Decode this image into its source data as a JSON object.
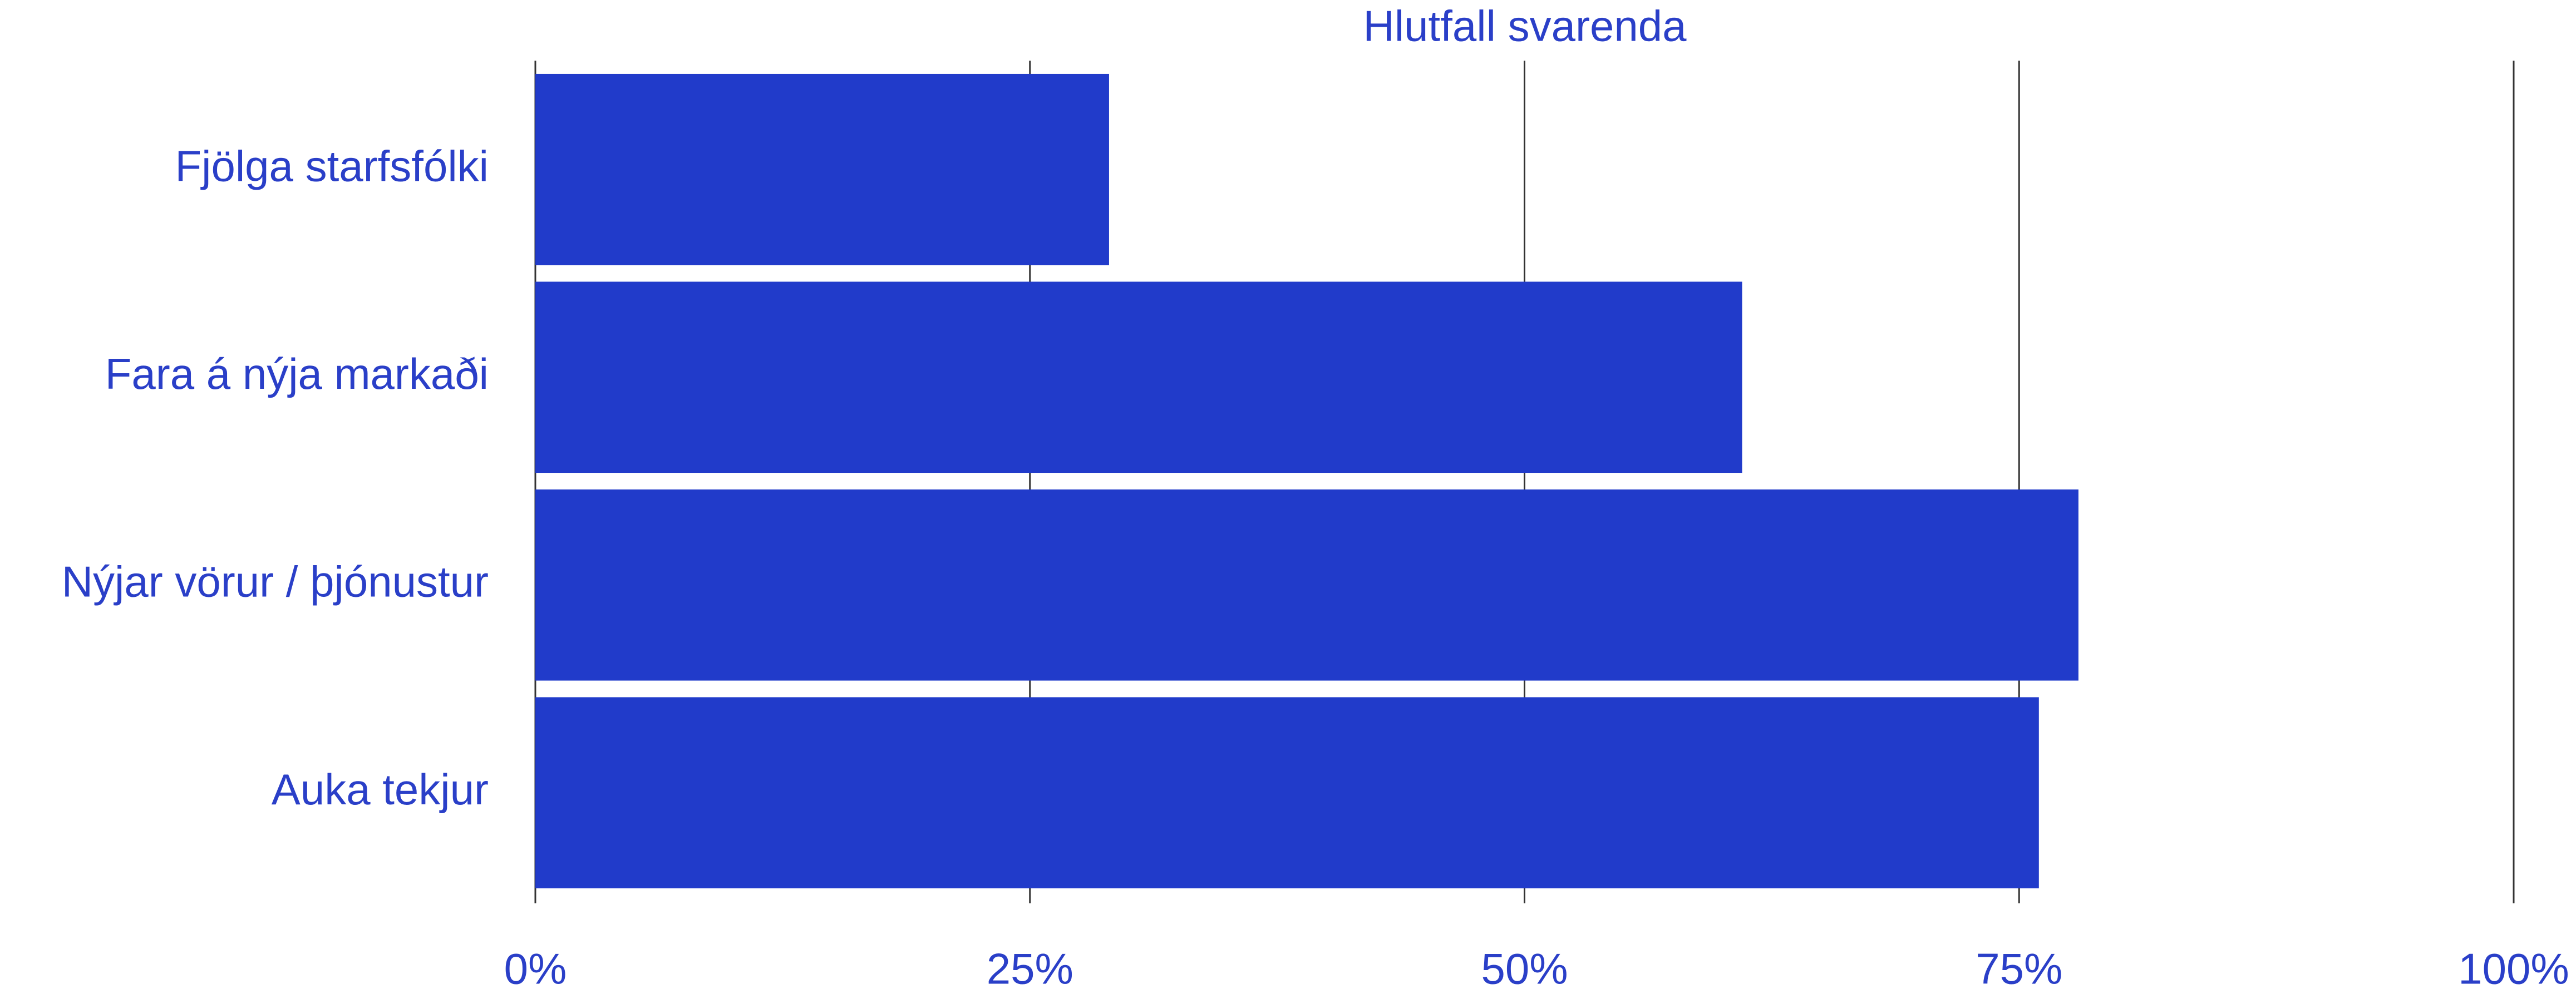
{
  "chart_data": {
    "type": "bar",
    "orientation": "horizontal",
    "xlabel": "Hlutfall svarenda",
    "categories": [
      "Fjölga starfsfólki",
      "Fara á nýja markaði",
      "Nýjar vörur / þjónustur",
      "Auka tekjur"
    ],
    "values": [
      29,
      61,
      78,
      76
    ],
    "color": "#213bca",
    "xlim": [
      0,
      100
    ],
    "xticks": [
      {
        "value": 0,
        "label": "0%"
      },
      {
        "value": 25,
        "label": "25%"
      },
      {
        "value": 50,
        "label": "50%"
      },
      {
        "value": 75,
        "label": "75%"
      },
      {
        "value": 100,
        "label": "100%"
      }
    ],
    "grid": true
  }
}
